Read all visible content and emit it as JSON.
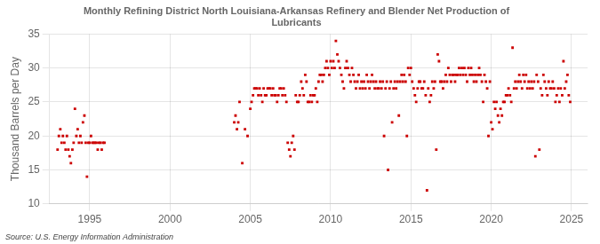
{
  "chart_data": {
    "type": "scatter",
    "title": "Monthly Refining District North Louisiana-Arkansas Refinery and Blender Net Production of\nLubricants",
    "ylabel": "Thousand Barrels per Day",
    "source": "Source: U.S. Energy Information Administration",
    "color": "#cc0000",
    "marker": "square",
    "grid": true,
    "xlim": [
      1992.5,
      2026
    ],
    "xticks": [
      1995,
      2000,
      2005,
      2010,
      2015,
      2020,
      2025
    ],
    "ylim": [
      10,
      35
    ],
    "yticks": [
      10,
      15,
      20,
      25,
      30,
      35
    ],
    "x": [
      1993.0,
      1993.08,
      1993.17,
      1993.25,
      1993.33,
      1993.42,
      1993.5,
      1993.58,
      1993.67,
      1993.75,
      1993.83,
      1993.92,
      1994.0,
      1994.08,
      1994.17,
      1994.25,
      1994.33,
      1994.42,
      1994.5,
      1994.58,
      1994.67,
      1994.75,
      1994.83,
      1994.92,
      1995.0,
      1995.08,
      1995.17,
      1995.25,
      1995.33,
      1995.42,
      1995.5,
      1995.58,
      1995.67,
      1995.75,
      1995.83,
      1995.92,
      2004.0,
      2004.08,
      2004.17,
      2004.25,
      2004.33,
      2004.5,
      2004.67,
      2004.83,
      2005.0,
      2005.08,
      2005.17,
      2005.25,
      2005.33,
      2005.42,
      2005.5,
      2005.58,
      2005.67,
      2005.75,
      2005.83,
      2005.92,
      2006.0,
      2006.08,
      2006.17,
      2006.25,
      2006.33,
      2006.42,
      2006.5,
      2006.58,
      2006.67,
      2006.75,
      2006.83,
      2006.92,
      2007.0,
      2007.08,
      2007.17,
      2007.25,
      2007.33,
      2007.42,
      2007.5,
      2007.58,
      2007.67,
      2007.75,
      2007.83,
      2007.92,
      2008.0,
      2008.08,
      2008.17,
      2008.25,
      2008.33,
      2008.42,
      2008.5,
      2008.58,
      2008.67,
      2008.75,
      2008.83,
      2008.92,
      2009.0,
      2009.08,
      2009.17,
      2009.25,
      2009.33,
      2009.42,
      2009.5,
      2009.58,
      2009.67,
      2009.75,
      2009.83,
      2009.92,
      2010.0,
      2010.08,
      2010.17,
      2010.25,
      2010.33,
      2010.42,
      2010.5,
      2010.58,
      2010.67,
      2010.75,
      2010.83,
      2010.92,
      2011.0,
      2011.08,
      2011.17,
      2011.25,
      2011.33,
      2011.42,
      2011.5,
      2011.58,
      2011.67,
      2011.75,
      2011.83,
      2011.92,
      2012.0,
      2012.08,
      2012.17,
      2012.25,
      2012.33,
      2012.42,
      2012.5,
      2012.58,
      2012.67,
      2012.75,
      2012.83,
      2012.92,
      2013.0,
      2013.08,
      2013.17,
      2013.25,
      2013.33,
      2013.42,
      2013.5,
      2013.58,
      2013.67,
      2013.75,
      2013.83,
      2013.92,
      2014.0,
      2014.08,
      2014.17,
      2014.25,
      2014.33,
      2014.42,
      2014.5,
      2014.58,
      2014.67,
      2014.75,
      2014.83,
      2014.92,
      2015.0,
      2015.08,
      2015.17,
      2015.25,
      2015.33,
      2015.42,
      2015.5,
      2015.58,
      2015.67,
      2015.75,
      2015.83,
      2015.92,
      2016.0,
      2016.08,
      2016.17,
      2016.25,
      2016.33,
      2016.42,
      2016.5,
      2016.58,
      2016.67,
      2016.75,
      2016.83,
      2016.92,
      2017.0,
      2017.08,
      2017.17,
      2017.25,
      2017.33,
      2017.42,
      2017.5,
      2017.58,
      2017.67,
      2017.75,
      2017.83,
      2017.92,
      2018.0,
      2018.08,
      2018.17,
      2018.25,
      2018.33,
      2018.42,
      2018.5,
      2018.58,
      2018.67,
      2018.75,
      2018.83,
      2018.92,
      2019.0,
      2019.08,
      2019.17,
      2019.25,
      2019.33,
      2019.42,
      2019.5,
      2019.58,
      2019.67,
      2019.75,
      2019.83,
      2019.92,
      2020.0,
      2020.08,
      2020.17,
      2020.25,
      2020.33,
      2020.42,
      2020.5,
      2020.58,
      2020.67,
      2020.75,
      2020.83,
      2020.92,
      2021.0,
      2021.08,
      2021.17,
      2021.25,
      2021.33,
      2021.42,
      2021.5,
      2021.58,
      2021.67,
      2021.75,
      2021.83,
      2021.92,
      2022.0,
      2022.08,
      2022.17,
      2022.25,
      2022.33,
      2022.42,
      2022.5,
      2022.58,
      2022.67,
      2022.75,
      2022.83,
      2022.92,
      2023.0,
      2023.08,
      2023.17,
      2023.25,
      2023.33,
      2023.42,
      2023.5,
      2023.58,
      2023.67,
      2023.75,
      2023.83,
      2023.92,
      2024.0,
      2024.08,
      2024.17,
      2024.25,
      2024.33,
      2024.42,
      2024.5,
      2024.58,
      2024.67,
      2024.75,
      2024.83,
      2024.92
    ],
    "values": [
      18,
      20,
      21,
      19,
      20,
      19,
      18,
      20,
      18,
      17,
      16,
      18,
      19,
      24,
      20,
      21,
      19,
      20,
      19,
      22,
      23,
      19,
      14,
      19,
      19,
      20,
      19,
      19,
      19,
      19,
      18,
      19,
      19,
      18,
      19,
      19,
      22,
      23,
      21,
      22,
      25,
      16,
      21,
      20,
      24,
      25,
      26,
      27,
      27,
      27,
      26,
      27,
      26,
      25,
      27,
      26,
      26,
      27,
      27,
      27,
      26,
      27,
      26,
      26,
      25,
      26,
      27,
      27,
      26,
      27,
      26,
      25,
      19,
      18,
      17,
      19,
      20,
      18,
      26,
      25,
      25,
      26,
      28,
      27,
      26,
      29,
      28,
      25,
      25,
      26,
      25,
      26,
      26,
      27,
      25,
      28,
      29,
      29,
      28,
      29,
      30,
      31,
      30,
      29,
      31,
      30,
      31,
      30,
      34,
      32,
      31,
      30,
      29,
      28,
      27,
      30,
      31,
      30,
      29,
      28,
      30,
      29,
      28,
      27,
      28,
      29,
      27,
      28,
      27,
      28,
      27,
      29,
      28,
      27,
      28,
      29,
      28,
      27,
      28,
      27,
      27,
      28,
      27,
      28,
      20,
      27,
      28,
      15,
      27,
      28,
      22,
      27,
      28,
      27,
      28,
      23,
      28,
      29,
      28,
      29,
      28,
      20,
      30,
      29,
      30,
      28,
      27,
      26,
      25,
      27,
      28,
      28,
      27,
      27,
      28,
      26,
      12,
      27,
      25,
      26,
      28,
      27,
      28,
      18,
      32,
      31,
      28,
      28,
      27,
      28,
      29,
      28,
      30,
      29,
      28,
      29,
      29,
      28,
      29,
      29,
      30,
      29,
      30,
      29,
      30,
      29,
      28,
      30,
      29,
      30,
      29,
      28,
      29,
      28,
      29,
      30,
      29,
      28,
      25,
      29,
      28,
      27,
      20,
      28,
      22,
      21,
      25,
      24,
      25,
      23,
      22,
      24,
      23,
      25,
      25,
      26,
      26,
      27,
      26,
      25,
      33,
      27,
      28,
      27,
      28,
      29,
      28,
      27,
      29,
      28,
      29,
      27,
      28,
      27,
      28,
      27,
      28,
      17,
      29,
      28,
      18,
      27,
      26,
      29,
      28,
      27,
      26,
      28,
      27,
      27,
      28,
      27,
      25,
      26,
      27,
      25,
      27,
      26,
      31,
      27,
      28,
      29,
      26,
      25
    ]
  }
}
